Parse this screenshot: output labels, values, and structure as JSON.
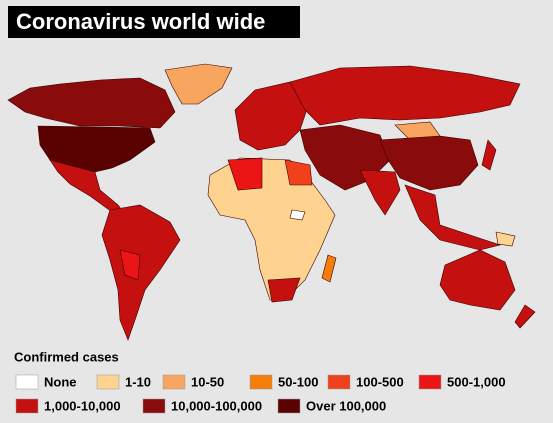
{
  "title": "Coronavirus world wide",
  "legend": {
    "title": "Confirmed cases",
    "items": [
      {
        "label": "None",
        "color": "#ffffff"
      },
      {
        "label": "1-10",
        "color": "#fdd38f"
      },
      {
        "label": "10-50",
        "color": "#f8a65f"
      },
      {
        "label": "50-100",
        "color": "#f57d0a"
      },
      {
        "label": "100-500",
        "color": "#f0411c"
      },
      {
        "label": "500-1,000",
        "color": "#ec1515"
      },
      {
        "label": "1,000-10,000",
        "color": "#c4100f"
      },
      {
        "label": "10,000-100,000",
        "color": "#8a0b0b"
      },
      {
        "label": "Over 100,000",
        "color": "#5a0202"
      }
    ]
  }
}
